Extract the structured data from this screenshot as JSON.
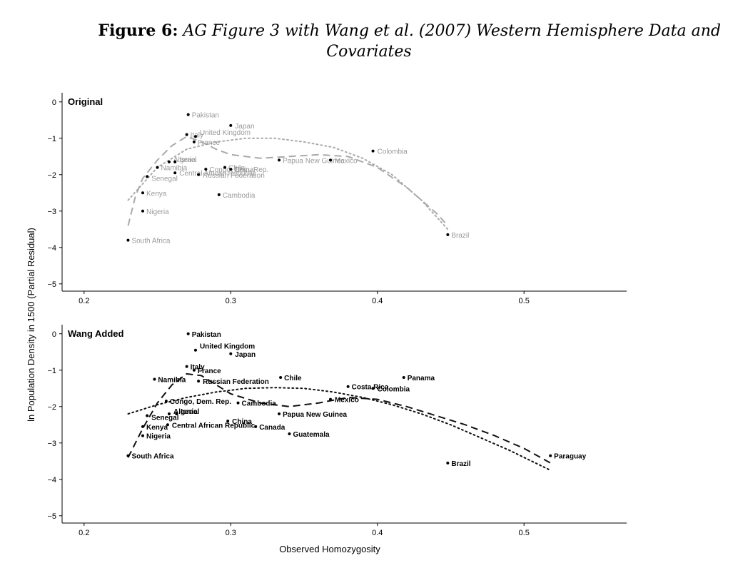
{
  "caption": {
    "label": "Figure 6:",
    "title_line1": "AG Figure 3 with Wang et al. (2007) Western Hemisphere Data and",
    "title_line2": "Covariates"
  },
  "colors": {
    "original": "#aaaaaa",
    "wang": "#111111",
    "axis": "#000000"
  },
  "chart_data": [
    {
      "type": "scatter",
      "title": "Original",
      "xlabel": "Observed Homozygosity",
      "ylabel": "ln Population Density in 1500 (Partial Residual)",
      "xlim": [
        0.185,
        0.57
      ],
      "ylim": [
        -5.2,
        0.25
      ],
      "x_ticks": [
        0.2,
        0.3,
        0.4,
        0.5
      ],
      "x_tick_labels": [
        "0.2",
        "0.3",
        "0.4",
        "0.5"
      ],
      "y_ticks": [
        0,
        -1,
        -2,
        -3,
        -4,
        -5
      ],
      "y_tick_labels": [
        "0",
        "−1",
        "−2",
        "−3",
        "−4",
        "−5"
      ],
      "points": [
        {
          "label": "Pakistan",
          "x": 0.271,
          "y": -0.35
        },
        {
          "label": "Japan",
          "x": 0.3,
          "y": -0.65
        },
        {
          "label": "Italy",
          "x": 0.27,
          "y": -0.9
        },
        {
          "label": "United Kingdom",
          "x": 0.276,
          "y": -0.95
        },
        {
          "label": "France",
          "x": 0.275,
          "y": -1.1
        },
        {
          "label": "Colombia",
          "x": 0.397,
          "y": -1.35
        },
        {
          "label": "Papua New Guinea",
          "x": 0.333,
          "y": -1.6
        },
        {
          "label": "Mexico",
          "x": 0.368,
          "y": -1.6
        },
        {
          "label": "Algeria",
          "x": 0.258,
          "y": -1.65
        },
        {
          "label": "Israel",
          "x": 0.262,
          "y": -1.65
        },
        {
          "label": "Namibia",
          "x": 0.25,
          "y": -1.8
        },
        {
          "label": "Congo, Dem. Rep.",
          "x": 0.283,
          "y": -1.85
        },
        {
          "label": "Chile",
          "x": 0.296,
          "y": -1.8
        },
        {
          "label": "China",
          "x": 0.3,
          "y": -1.85
        },
        {
          "label": "Central African Republic",
          "x": 0.262,
          "y": -1.95
        },
        {
          "label": "Senegal",
          "x": 0.243,
          "y": -2.05
        },
        {
          "label": "Russian Federation",
          "x": 0.278,
          "y": -2.0
        },
        {
          "label": "Kenya",
          "x": 0.24,
          "y": -2.5
        },
        {
          "label": "Cambodia",
          "x": 0.292,
          "y": -2.55
        },
        {
          "label": "Nigeria",
          "x": 0.24,
          "y": -3.0
        },
        {
          "label": "South Africa",
          "x": 0.23,
          "y": -3.8
        },
        {
          "label": "Brazil",
          "x": 0.448,
          "y": -3.65
        }
      ],
      "fit_dashed": [
        [
          0.23,
          -3.4
        ],
        [
          0.235,
          -2.6
        ],
        [
          0.24,
          -2.1
        ],
        [
          0.25,
          -1.6
        ],
        [
          0.26,
          -1.2
        ],
        [
          0.27,
          -0.95
        ],
        [
          0.28,
          -1.1
        ],
        [
          0.29,
          -1.3
        ],
        [
          0.3,
          -1.45
        ],
        [
          0.32,
          -1.55
        ],
        [
          0.34,
          -1.5
        ],
        [
          0.36,
          -1.45
        ],
        [
          0.38,
          -1.5
        ],
        [
          0.4,
          -1.8
        ],
        [
          0.42,
          -2.35
        ],
        [
          0.44,
          -3.05
        ],
        [
          0.448,
          -3.4
        ]
      ],
      "fit_dotted": [
        [
          0.23,
          -2.7
        ],
        [
          0.25,
          -1.8
        ],
        [
          0.27,
          -1.3
        ],
        [
          0.29,
          -1.1
        ],
        [
          0.31,
          -1.0
        ],
        [
          0.33,
          -1.0
        ],
        [
          0.35,
          -1.1
        ],
        [
          0.37,
          -1.25
        ],
        [
          0.39,
          -1.55
        ],
        [
          0.41,
          -2.0
        ],
        [
          0.43,
          -2.7
        ],
        [
          0.448,
          -3.5
        ]
      ]
    },
    {
      "type": "scatter",
      "title": "Wang Added",
      "xlabel": "Observed Homozygosity",
      "ylabel": "ln Population Density in 1500 (Partial Residual)",
      "xlim": [
        0.185,
        0.57
      ],
      "ylim": [
        -5.2,
        0.25
      ],
      "x_ticks": [
        0.2,
        0.3,
        0.4,
        0.5
      ],
      "x_tick_labels": [
        "0.2",
        "0.3",
        "0.4",
        "0.5"
      ],
      "y_ticks": [
        0,
        -1,
        -2,
        -3,
        -4,
        -5
      ],
      "y_tick_labels": [
        "0",
        "−1",
        "−2",
        "−3",
        "−4",
        "−5"
      ],
      "points": [
        {
          "label": "Pakistan",
          "x": 0.271,
          "y": 0.0
        },
        {
          "label": "United Kingdom",
          "x": 0.276,
          "y": -0.45
        },
        {
          "label": "Japan",
          "x": 0.3,
          "y": -0.55
        },
        {
          "label": "Italy",
          "x": 0.27,
          "y": -0.9
        },
        {
          "label": "France",
          "x": 0.275,
          "y": -1.0
        },
        {
          "label": "Namibia",
          "x": 0.248,
          "y": -1.25
        },
        {
          "label": "Russian Federation",
          "x": 0.278,
          "y": -1.3
        },
        {
          "label": "Chile",
          "x": 0.334,
          "y": -1.2
        },
        {
          "label": "Panama",
          "x": 0.418,
          "y": -1.2
        },
        {
          "label": "Costa Rica",
          "x": 0.38,
          "y": -1.45
        },
        {
          "label": "Colombia",
          "x": 0.397,
          "y": -1.5
        },
        {
          "label": "Congo, Dem. Rep.",
          "x": 0.256,
          "y": -1.85
        },
        {
          "label": "Mexico",
          "x": 0.368,
          "y": -1.8
        },
        {
          "label": "Cambodia",
          "x": 0.305,
          "y": -1.9
        },
        {
          "label": "Papua New Guinea",
          "x": 0.333,
          "y": -2.2
        },
        {
          "label": "Senegal",
          "x": 0.243,
          "y": -2.25
        },
        {
          "label": "Algeria",
          "x": 0.258,
          "y": -2.2
        },
        {
          "label": "Israel",
          "x": 0.263,
          "y": -2.2
        },
        {
          "label": "China",
          "x": 0.298,
          "y": -2.4
        },
        {
          "label": "Central African Republic",
          "x": 0.257,
          "y": -2.5
        },
        {
          "label": "Canada",
          "x": 0.317,
          "y": -2.55
        },
        {
          "label": "Kenya",
          "x": 0.24,
          "y": -2.55
        },
        {
          "label": "Guatemala",
          "x": 0.34,
          "y": -2.75
        },
        {
          "label": "Nigeria",
          "x": 0.24,
          "y": -2.8
        },
        {
          "label": "South Africa",
          "x": 0.23,
          "y": -3.35
        },
        {
          "label": "Brazil",
          "x": 0.448,
          "y": -3.55
        },
        {
          "label": "Paraguay",
          "x": 0.518,
          "y": -3.35
        }
      ],
      "fit_dashed": [
        [
          0.23,
          -3.4
        ],
        [
          0.24,
          -2.6
        ],
        [
          0.25,
          -1.9
        ],
        [
          0.26,
          -1.4
        ],
        [
          0.27,
          -1.1
        ],
        [
          0.28,
          -1.15
        ],
        [
          0.29,
          -1.4
        ],
        [
          0.3,
          -1.65
        ],
        [
          0.32,
          -1.9
        ],
        [
          0.34,
          -2.0
        ],
        [
          0.36,
          -1.9
        ],
        [
          0.38,
          -1.75
        ],
        [
          0.4,
          -1.8
        ],
        [
          0.42,
          -2.0
        ],
        [
          0.44,
          -2.25
        ],
        [
          0.46,
          -2.5
        ],
        [
          0.48,
          -2.8
        ],
        [
          0.5,
          -3.15
        ],
        [
          0.518,
          -3.55
        ]
      ],
      "fit_dotted": [
        [
          0.23,
          -2.2
        ],
        [
          0.25,
          -1.95
        ],
        [
          0.27,
          -1.75
        ],
        [
          0.29,
          -1.6
        ],
        [
          0.31,
          -1.5
        ],
        [
          0.33,
          -1.48
        ],
        [
          0.35,
          -1.5
        ],
        [
          0.37,
          -1.6
        ],
        [
          0.39,
          -1.75
        ],
        [
          0.41,
          -1.95
        ],
        [
          0.43,
          -2.2
        ],
        [
          0.45,
          -2.5
        ],
        [
          0.47,
          -2.85
        ],
        [
          0.49,
          -3.2
        ],
        [
          0.518,
          -3.75
        ]
      ]
    }
  ]
}
